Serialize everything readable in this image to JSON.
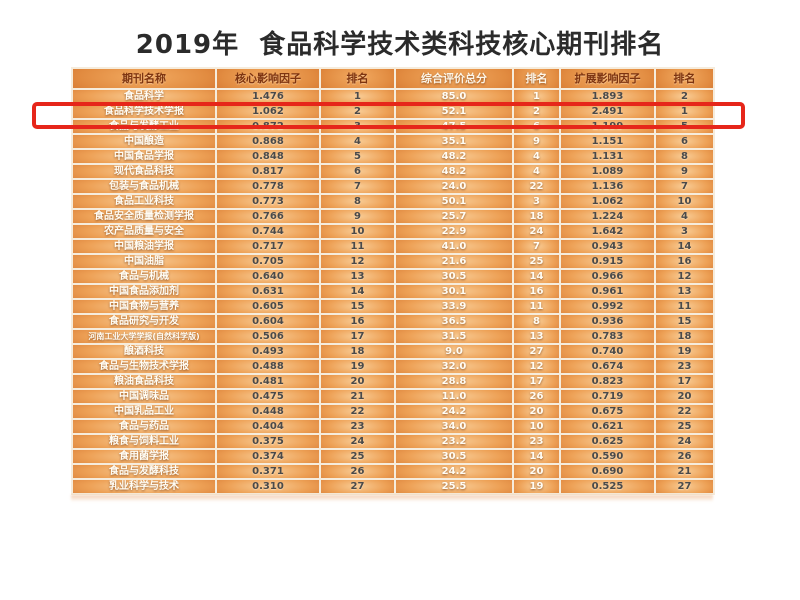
{
  "title": "2019年  食品科学技术类科技核心期刊排名",
  "chart_data": {
    "type": "table",
    "title": "2019年 食品科学技术类科技核心期刊排名",
    "columns": [
      "期刊名称",
      "核心影响因子",
      "排名",
      "综合评价总分",
      "排名",
      "扩展影响因子",
      "排名"
    ],
    "rows": [
      [
        "食品科学",
        "1.476",
        "1",
        "85.0",
        "1",
        "1.893",
        "2"
      ],
      [
        "食品科学技术学报",
        "1.062",
        "2",
        "52.1",
        "2",
        "2.491",
        "1"
      ],
      [
        "食品与发酵工业",
        "0.872",
        "3",
        "47.5",
        "6",
        "1.199",
        "5"
      ],
      [
        "中国酿造",
        "0.868",
        "4",
        "35.1",
        "9",
        "1.151",
        "6"
      ],
      [
        "中国食品学报",
        "0.848",
        "5",
        "48.2",
        "4",
        "1.131",
        "8"
      ],
      [
        "现代食品科技",
        "0.817",
        "6",
        "48.2",
        "4",
        "1.089",
        "9"
      ],
      [
        "包装与食品机械",
        "0.778",
        "7",
        "24.0",
        "22",
        "1.136",
        "7"
      ],
      [
        "食品工业科技",
        "0.773",
        "8",
        "50.1",
        "3",
        "1.062",
        "10"
      ],
      [
        "食品安全质量检测学报",
        "0.766",
        "9",
        "25.7",
        "18",
        "1.224",
        "4"
      ],
      [
        "农产品质量与安全",
        "0.744",
        "10",
        "22.9",
        "24",
        "1.642",
        "3"
      ],
      [
        "中国粮油学报",
        "0.717",
        "11",
        "41.0",
        "7",
        "0.943",
        "14"
      ],
      [
        "中国油脂",
        "0.705",
        "12",
        "21.6",
        "25",
        "0.915",
        "16"
      ],
      [
        "食品与机械",
        "0.640",
        "13",
        "30.5",
        "14",
        "0.966",
        "12"
      ],
      [
        "中国食品添加剂",
        "0.631",
        "14",
        "30.1",
        "16",
        "0.961",
        "13"
      ],
      [
        "中国食物与营养",
        "0.605",
        "15",
        "33.9",
        "11",
        "0.992",
        "11"
      ],
      [
        "食品研究与开发",
        "0.604",
        "16",
        "36.5",
        "8",
        "0.936",
        "15"
      ],
      [
        "河南工业大学学报(自然科学版)",
        "0.506",
        "17",
        "31.5",
        "13",
        "0.783",
        "18"
      ],
      [
        "酿酒科技",
        "0.493",
        "18",
        "9.0",
        "27",
        "0.740",
        "19"
      ],
      [
        "食品与生物技术学报",
        "0.488",
        "19",
        "32.0",
        "12",
        "0.674",
        "23"
      ],
      [
        "粮油食品科技",
        "0.481",
        "20",
        "28.8",
        "17",
        "0.823",
        "17"
      ],
      [
        "中国调味品",
        "0.475",
        "21",
        "11.0",
        "26",
        "0.719",
        "20"
      ],
      [
        "中国乳品工业",
        "0.448",
        "22",
        "24.2",
        "20",
        "0.675",
        "22"
      ],
      [
        "食品与药品",
        "0.404",
        "23",
        "34.0",
        "10",
        "0.621",
        "25"
      ],
      [
        "粮食与饲料工业",
        "0.375",
        "24",
        "23.2",
        "23",
        "0.625",
        "24"
      ],
      [
        "食用菌学报",
        "0.374",
        "25",
        "30.5",
        "14",
        "0.590",
        "26"
      ],
      [
        "食品与发酵科技",
        "0.371",
        "26",
        "24.2",
        "20",
        "0.690",
        "21"
      ],
      [
        "乳业科学与技术",
        "0.310",
        "27",
        "25.5",
        "19",
        "0.525",
        "27"
      ]
    ],
    "highlight": {
      "row_index": 1,
      "journal": "食品科学技术学报",
      "annotation": "red-box"
    },
    "layout": {
      "grid": "on",
      "legend": "none"
    }
  },
  "colors": {
    "background": "#ffffff",
    "title_text": "#2b2b2b",
    "cell_gradient_light": "#f9cd96",
    "cell_gradient_dark": "#bd581d",
    "grid_line": "#f6ecdc",
    "header_text_dark": "#7e3410",
    "text_light": "#fffdf5",
    "text_dark": "#4a4a4a",
    "highlight_border": "#e6261a"
  }
}
